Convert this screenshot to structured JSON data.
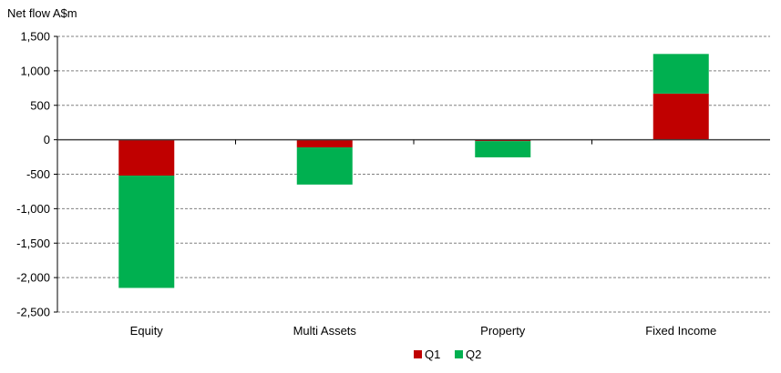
{
  "chart_data": {
    "type": "bar",
    "stacked": true,
    "title": "",
    "ylabel": "Net flow A$m",
    "xlabel": "",
    "ylim": [
      -2500,
      1500
    ],
    "yticks": [
      1500,
      1000,
      500,
      0,
      -500,
      -1000,
      -1500,
      -2000,
      -2500
    ],
    "ytick_labels": [
      "1,500",
      "1,000",
      "500",
      "0",
      "-500",
      "-1,000",
      "-1,500",
      "-2,000",
      "-2,500"
    ],
    "grid": true,
    "legend_position": "bottom-center",
    "categories": [
      "Equity",
      "Multi Assets",
      "Property",
      "Fixed Income"
    ],
    "series": [
      {
        "name": "Q1",
        "color": "#C00000",
        "values": [
          -520,
          -110,
          -20,
          670
        ]
      },
      {
        "name": "Q2",
        "color": "#00B050",
        "values": [
          -1630,
          -540,
          -235,
          575
        ]
      }
    ]
  }
}
